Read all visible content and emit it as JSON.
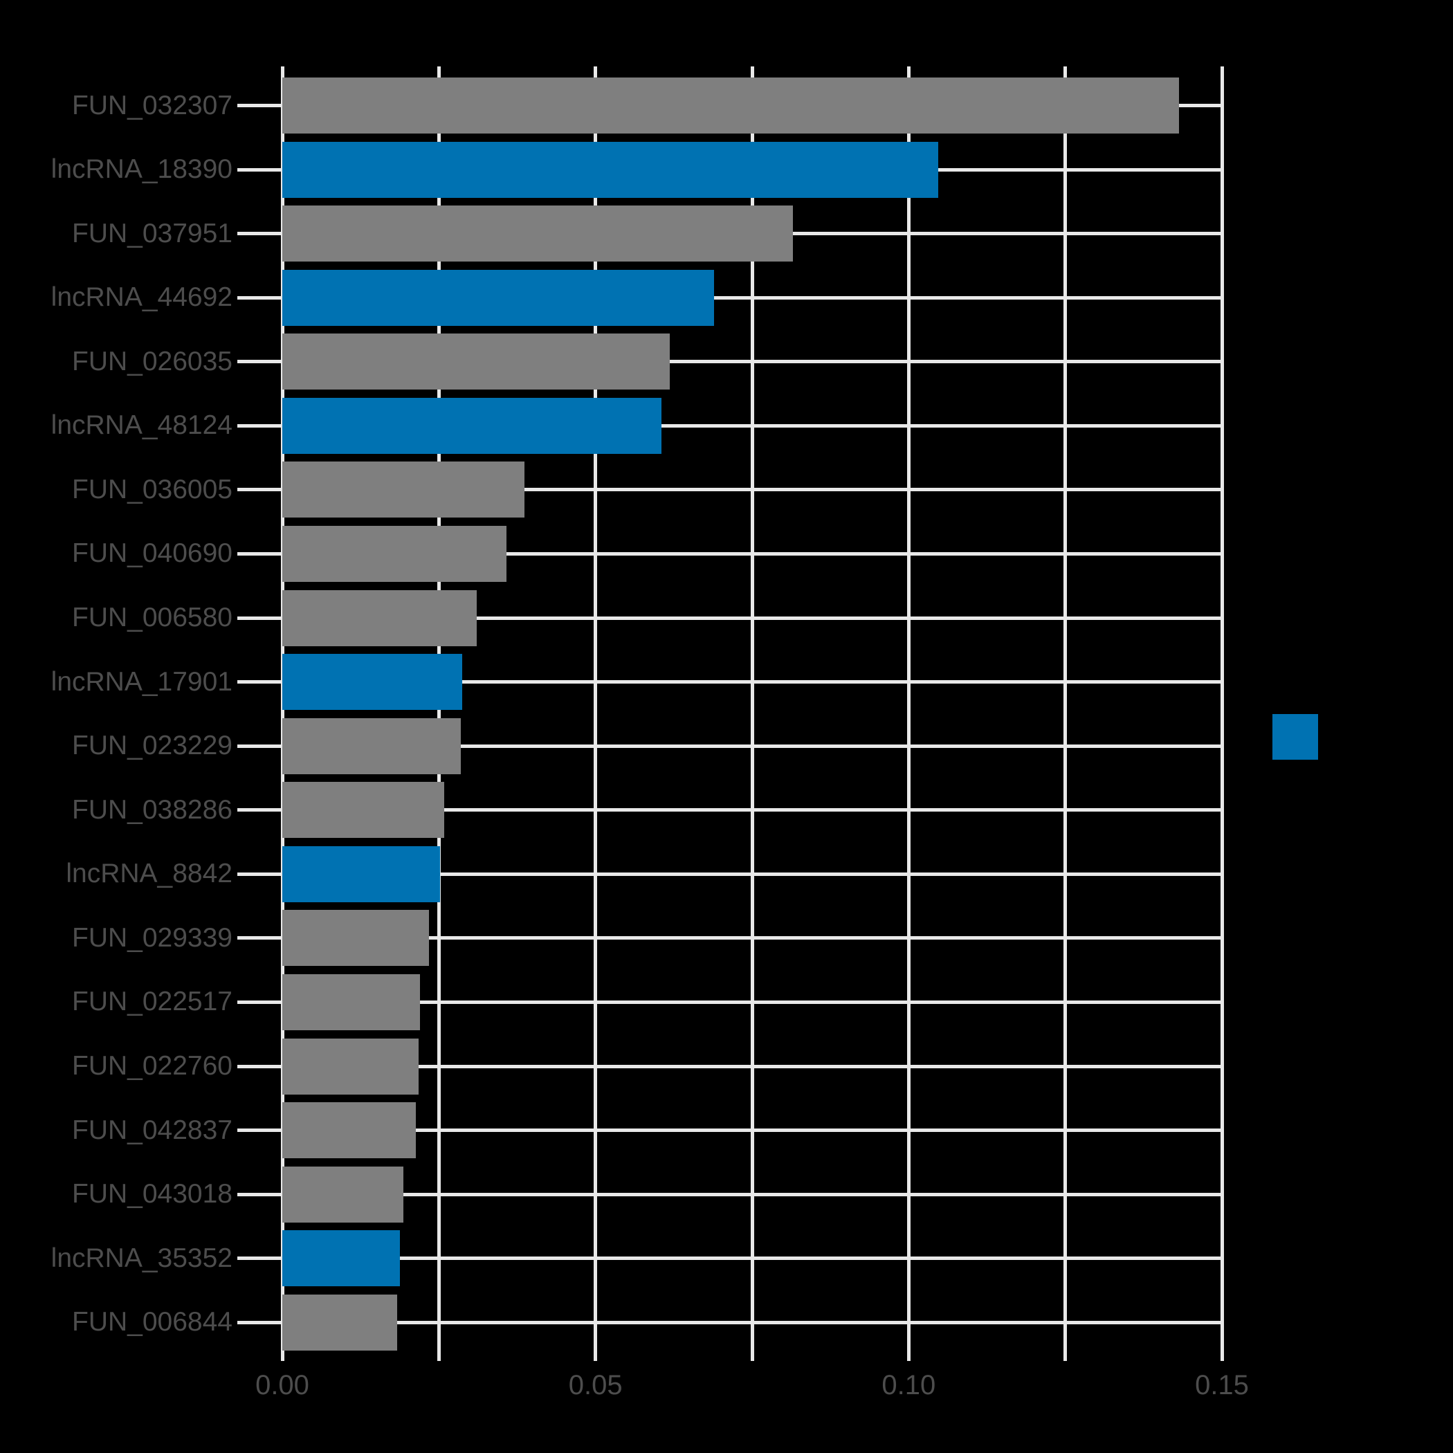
{
  "figure": {
    "background": "#000000"
  },
  "styles": {
    "grid_color": "#e8e8e8",
    "tick_color": "#e8e8e8",
    "axis_text_color": "#4d4d4d",
    "bar_color_fun": "#7f7f7f",
    "bar_color_lncrna": "#0072b2"
  },
  "legend": {
    "swatch_color": "#0072b2"
  },
  "chart_data": {
    "type": "bar",
    "orientation": "horizontal",
    "title": "",
    "xlabel": "",
    "ylabel": "",
    "xlim": [
      0,
      0.15
    ],
    "grid": "on",
    "legend_position": "right-middle",
    "xticks": [
      0,
      0.025,
      0.05,
      0.075,
      0.1,
      0.125,
      0.15
    ],
    "xtick_labels": [
      "0.00",
      "",
      "0.05",
      "",
      "0.10",
      "",
      "0.15"
    ],
    "group_colors": {
      "FUN": "#7f7f7f",
      "lncRNA": "#0072b2"
    },
    "bars": [
      {
        "label": "FUN_032307",
        "value": 0.1432,
        "group": "FUN"
      },
      {
        "label": "lncRNA_18390",
        "value": 0.1047,
        "group": "lncRNA"
      },
      {
        "label": "FUN_037951",
        "value": 0.0815,
        "group": "FUN"
      },
      {
        "label": "lncRNA_44692",
        "value": 0.0689,
        "group": "lncRNA"
      },
      {
        "label": "FUN_026035",
        "value": 0.0619,
        "group": "FUN"
      },
      {
        "label": "lncRNA_48124",
        "value": 0.0605,
        "group": "lncRNA"
      },
      {
        "label": "FUN_036005",
        "value": 0.0387,
        "group": "FUN"
      },
      {
        "label": "FUN_040690",
        "value": 0.0358,
        "group": "FUN"
      },
      {
        "label": "FUN_006580",
        "value": 0.031,
        "group": "FUN"
      },
      {
        "label": "lncRNA_17901",
        "value": 0.0287,
        "group": "lncRNA"
      },
      {
        "label": "FUN_023229",
        "value": 0.0285,
        "group": "FUN"
      },
      {
        "label": "FUN_038286",
        "value": 0.0258,
        "group": "FUN"
      },
      {
        "label": "lncRNA_8842",
        "value": 0.0252,
        "group": "lncRNA"
      },
      {
        "label": "FUN_029339",
        "value": 0.0234,
        "group": "FUN"
      },
      {
        "label": "FUN_022517",
        "value": 0.022,
        "group": "FUN"
      },
      {
        "label": "FUN_022760",
        "value": 0.0218,
        "group": "FUN"
      },
      {
        "label": "FUN_042837",
        "value": 0.0213,
        "group": "FUN"
      },
      {
        "label": "FUN_043018",
        "value": 0.0193,
        "group": "FUN"
      },
      {
        "label": "lncRNA_35352",
        "value": 0.0188,
        "group": "lncRNA"
      },
      {
        "label": "FUN_006844",
        "value": 0.0183,
        "group": "FUN"
      }
    ]
  }
}
